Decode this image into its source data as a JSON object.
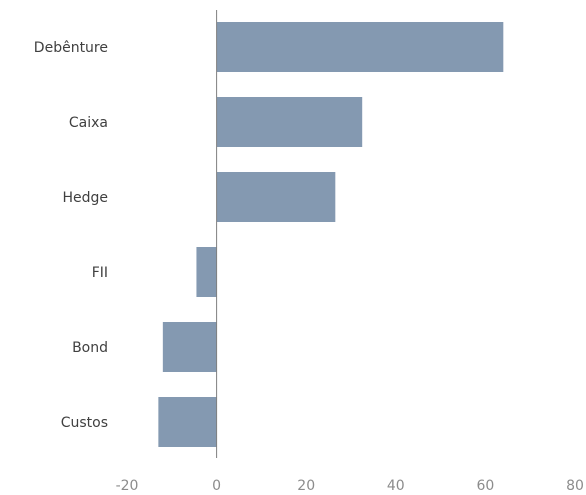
{
  "chart_data": {
    "type": "bar",
    "orientation": "horizontal",
    "categories": [
      "Debênture",
      "Caixa",
      "Hedge",
      "FII",
      "Bond",
      "Custos"
    ],
    "values": [
      64,
      32.5,
      26.5,
      -4.5,
      -12,
      -13
    ],
    "xlim": [
      -20,
      80
    ],
    "xticks": [
      "-20",
      "0",
      "20",
      "40",
      "60",
      "80"
    ],
    "title": "",
    "xlabel": "",
    "ylabel": "",
    "grid": false,
    "legend": "none",
    "bar_color": "#8499b1",
    "axis_color": "#7f7f7f"
  }
}
